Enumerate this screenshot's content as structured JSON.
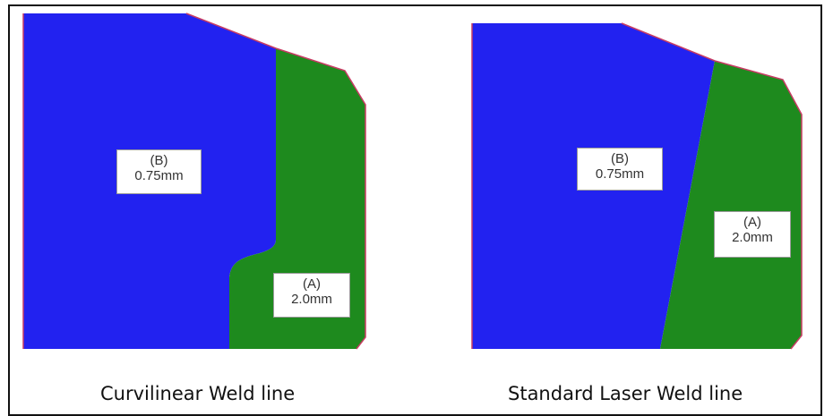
{
  "panels": [
    {
      "caption": "Curvilinear Weld line",
      "region_b": {
        "tag": "(B)",
        "thickness": "0.75mm"
      },
      "region_a": {
        "tag": "(A)",
        "thickness": "2.0mm"
      }
    },
    {
      "caption": "Standard Laser Weld line",
      "region_b": {
        "tag": "(B)",
        "thickness": "0.75mm"
      },
      "region_a": {
        "tag": "(A)",
        "thickness": "2.0mm"
      }
    }
  ],
  "colors": {
    "region_b": "#2222f0",
    "region_a": "#1e8a1e",
    "edge": "#c83c64"
  }
}
